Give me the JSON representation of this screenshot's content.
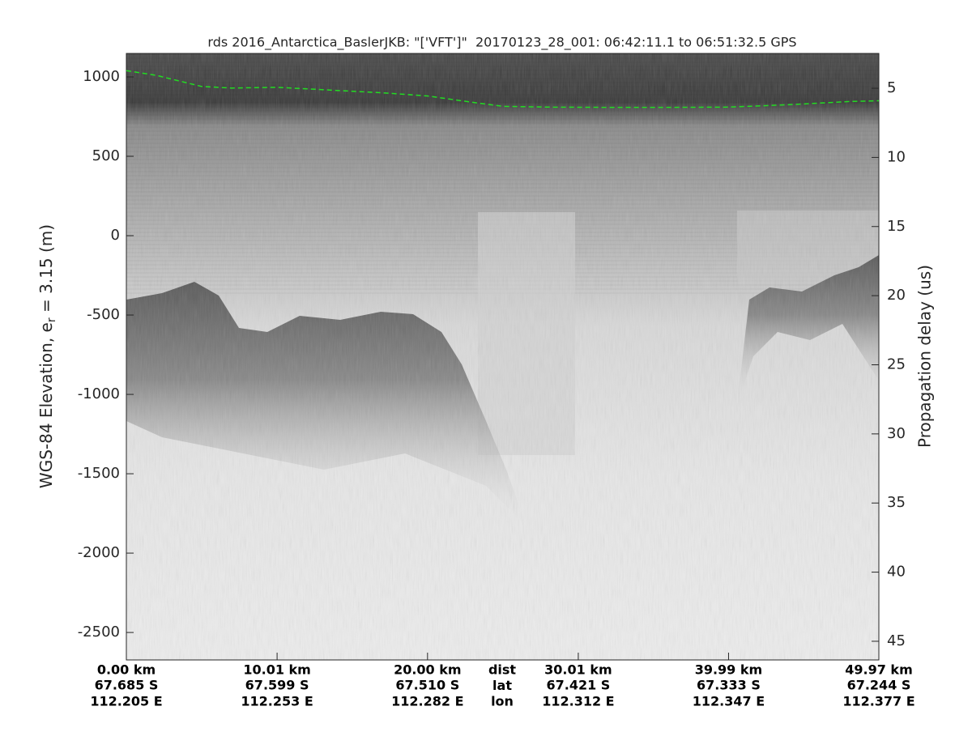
{
  "chart_data": {
    "type": "radargram",
    "title": "rds 2016_Antarctica_BaslerJKB: \"['VFT']\"  20170123_28_001: 06:42:11.1 to 06:51:32.5 GPS",
    "ylabel": "WGS-84 Elevation, e",
    "ylabel_sub": "r",
    "ylabel_rest": " = 3.15 (m)",
    "y2label": "Propagation delay (us)",
    "xlim": [
      0,
      49.97
    ],
    "ylim": [
      -2673,
      1148
    ],
    "y2lim": [
      2.48,
      46.35
    ],
    "yticks": [
      1000,
      500,
      0,
      -500,
      -1000,
      -1500,
      -2000,
      -2500
    ],
    "y2ticks": [
      5,
      10,
      15,
      20,
      25,
      30,
      35,
      40,
      45
    ],
    "xticks": [
      {
        "value": 0,
        "label": "0.00 km"
      },
      {
        "value": 10.01,
        "label": "10.01 km"
      },
      {
        "value": 20.0,
        "label": "20.00 km"
      },
      {
        "value": 30.01,
        "label": "30.01 km"
      },
      {
        "value": 39.99,
        "label": "39.99 km"
      },
      {
        "value": 49.97,
        "label": "49.97 km"
      }
    ],
    "xtick_lat": [
      "67.685 S",
      "67.599 S",
      "67.510 S",
      "67.421 S",
      "67.333 S",
      "67.244 S"
    ],
    "xtick_lon": [
      "112.205 E",
      "112.253 E",
      "112.282 E",
      "112.312 E",
      "112.347 E",
      "112.377 E"
    ],
    "row_labels": [
      "dist",
      "lat",
      "lon"
    ],
    "series": [
      {
        "color": "#22dd22",
        "x": [
          0,
          2,
          5,
          7,
          10,
          14,
          17,
          20,
          23,
          25,
          28,
          32,
          36,
          40,
          44,
          48,
          49.97
        ],
        "values": [
          1040,
          1010,
          940,
          930,
          935,
          915,
          900,
          880,
          840,
          815,
          810,
          808,
          808,
          810,
          825,
          845,
          850
        ]
      }
    ]
  }
}
